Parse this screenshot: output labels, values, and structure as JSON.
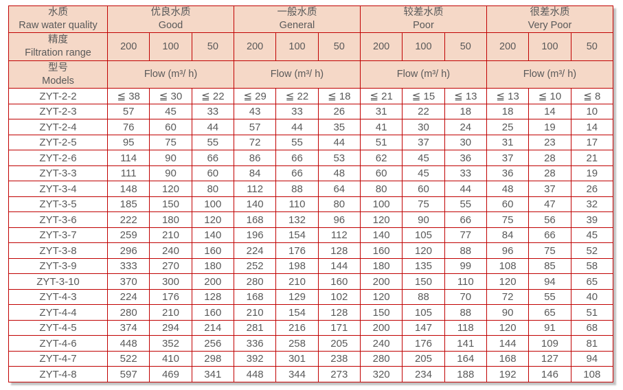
{
  "colors": {
    "border_red": "#c00000",
    "header_bg": "#f5d8c7",
    "text_gray": "#595959",
    "page_bg": "#ffffff"
  },
  "table": {
    "corner": {
      "quality_zh": "水质",
      "quality_en": "Raw water quality",
      "filtration_zh": "精度",
      "filtration_en": "Filtration range",
      "models_zh": "型号",
      "models_en": "Models"
    },
    "quality_groups": [
      {
        "zh": "优良水质",
        "en": "Good"
      },
      {
        "zh": "一般水质",
        "en": "General"
      },
      {
        "zh": "较差水质",
        "en": "Poor"
      },
      {
        "zh": "很差水质",
        "en": "Very Poor"
      }
    ],
    "filtration_values": [
      "200",
      "100",
      "50"
    ],
    "flow_label": "Flow (m³/ h)",
    "rows": [
      {
        "model": "ZYT-2-2",
        "values": [
          "≦ 38",
          "≦ 30",
          "≦ 22",
          "≦ 29",
          "≦ 22",
          "≦ 18",
          "≦ 21",
          "≦ 15",
          "≦ 13",
          "≦ 13",
          "≦ 10",
          "≦ 8"
        ]
      },
      {
        "model": "ZYT-2-3",
        "values": [
          "57",
          "45",
          "33",
          "43",
          "33",
          "26",
          "31",
          "22",
          "18",
          "18",
          "14",
          "10"
        ]
      },
      {
        "model": "ZYT-2-4",
        "values": [
          "76",
          "60",
          "44",
          "57",
          "44",
          "35",
          "41",
          "30",
          "24",
          "25",
          "19",
          "14"
        ]
      },
      {
        "model": "ZYT-2-5",
        "values": [
          "95",
          "75",
          "55",
          "72",
          "55",
          "44",
          "51",
          "37",
          "30",
          "31",
          "23",
          "17"
        ]
      },
      {
        "model": "ZYT-2-6",
        "values": [
          "114",
          "90",
          "66",
          "86",
          "66",
          "53",
          "62",
          "45",
          "36",
          "37",
          "28",
          "21"
        ]
      },
      {
        "model": "ZYT-3-3",
        "values": [
          "111",
          "90",
          "60",
          "84",
          "66",
          "48",
          "60",
          "45",
          "33",
          "36",
          "28",
          "19"
        ]
      },
      {
        "model": "ZYT-3-4",
        "values": [
          "148",
          "120",
          "80",
          "112",
          "88",
          "64",
          "80",
          "60",
          "44",
          "48",
          "37",
          "26"
        ]
      },
      {
        "model": "ZYT-3-5",
        "values": [
          "185",
          "150",
          "100",
          "140",
          "110",
          "80",
          "100",
          "75",
          "55",
          "60",
          "47",
          "32"
        ]
      },
      {
        "model": "ZYT-3-6",
        "values": [
          "222",
          "180",
          "120",
          "168",
          "132",
          "96",
          "120",
          "90",
          "66",
          "75",
          "56",
          "39"
        ]
      },
      {
        "model": "ZYT-3-7",
        "values": [
          "259",
          "210",
          "140",
          "196",
          "154",
          "112",
          "140",
          "105",
          "77",
          "84",
          "66",
          "45"
        ]
      },
      {
        "model": "ZYT-3-8",
        "values": [
          "296",
          "240",
          "160",
          "224",
          "176",
          "128",
          "160",
          "120",
          "88",
          "96",
          "75",
          "52"
        ]
      },
      {
        "model": "ZYT-3-9",
        "values": [
          "333",
          "270",
          "180",
          "252",
          "198",
          "144",
          "180",
          "135",
          "99",
          "108",
          "85",
          "58"
        ]
      },
      {
        "model": "ZYT-3-10",
        "values": [
          "370",
          "300",
          "200",
          "280",
          "210",
          "160",
          "200",
          "150",
          "110",
          "120",
          "94",
          "65"
        ]
      },
      {
        "model": "ZYT-4-3",
        "values": [
          "224",
          "176",
          "128",
          "168",
          "129",
          "102",
          "120",
          "88",
          "70",
          "72",
          "55",
          "40"
        ]
      },
      {
        "model": "ZYT-4-4",
        "values": [
          "280",
          "210",
          "160",
          "210",
          "154",
          "128",
          "150",
          "105",
          "88",
          "90",
          "65",
          "51"
        ]
      },
      {
        "model": "ZYT-4-5",
        "values": [
          "374",
          "294",
          "214",
          "281",
          "216",
          "171",
          "200",
          "147",
          "118",
          "120",
          "91",
          "68"
        ]
      },
      {
        "model": "ZYT-4-6",
        "values": [
          "448",
          "352",
          "256",
          "336",
          "258",
          "205",
          "240",
          "176",
          "141",
          "144",
          "109",
          "81"
        ]
      },
      {
        "model": "ZYT-4-7",
        "values": [
          "522",
          "410",
          "298",
          "392",
          "301",
          "238",
          "280",
          "205",
          "164",
          "168",
          "127",
          "94"
        ]
      },
      {
        "model": "ZYT-4-8",
        "values": [
          "597",
          "469",
          "341",
          "448",
          "344",
          "273",
          "320",
          "234",
          "188",
          "192",
          "146",
          "108"
        ]
      }
    ]
  }
}
